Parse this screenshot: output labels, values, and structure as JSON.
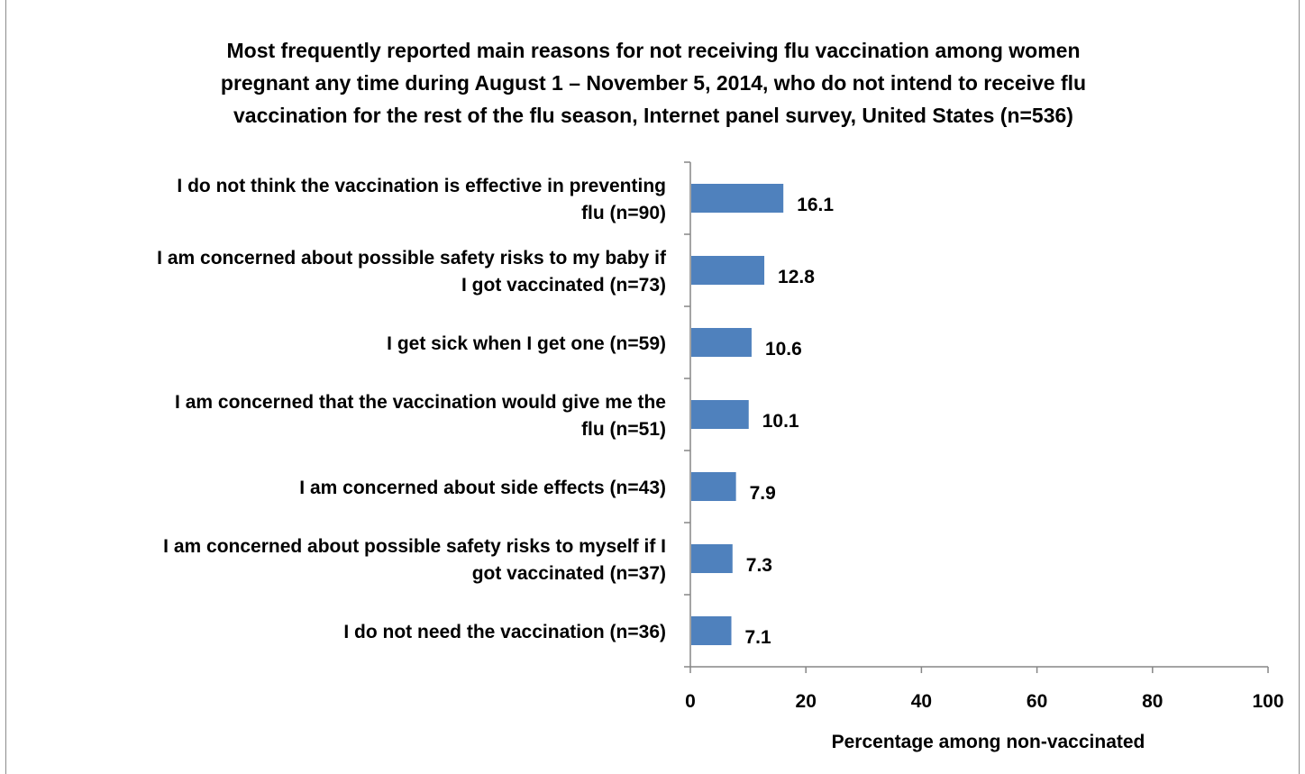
{
  "chart_data": {
    "type": "bar",
    "orientation": "horizontal",
    "title_lines": [
      "Most frequently reported main reasons for not receiving flu vaccination among women",
      "pregnant any time during August 1 – November 5, 2014, who do not intend to receive flu",
      "vaccination for the rest of the flu season, Internet panel survey, United States (n=536)"
    ],
    "categories": [
      [
        "I do not think the vaccination is effective in preventing",
        "flu (n=90)"
      ],
      [
        "I am concerned about possible safety risks to my baby if",
        "I got vaccinated (n=73)"
      ],
      [
        "I get sick when I get one (n=59)"
      ],
      [
        "I am concerned that the vaccination would give me the",
        "flu (n=51)"
      ],
      [
        "I am concerned about side effects (n=43)"
      ],
      [
        "I am concerned about possible safety risks to myself if I",
        "got vaccinated (n=37)"
      ],
      [
        "I do not need the vaccination (n=36)"
      ]
    ],
    "values": [
      16.1,
      12.8,
      10.6,
      10.1,
      7.9,
      7.3,
      7.1
    ],
    "data_labels": [
      "16.1",
      "12.8",
      "10.6",
      "10.1",
      "7.9",
      "7.3",
      "7.1"
    ],
    "xlabel": "Percentage among non-vaccinated",
    "ylabel": "",
    "xlim": [
      0,
      100
    ],
    "xticks": [
      0,
      20,
      40,
      60,
      80,
      100
    ],
    "grid": false,
    "legend": "none",
    "bar_color": "#4f81bd"
  }
}
